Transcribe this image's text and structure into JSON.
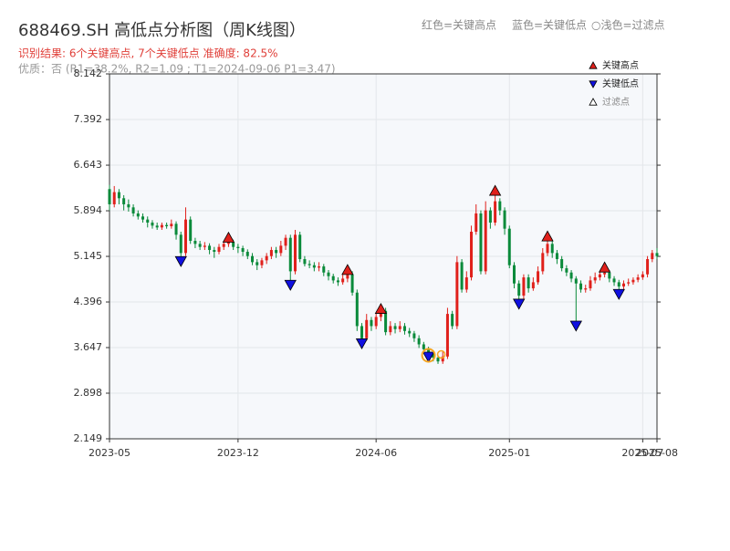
{
  "chart_data": {
    "type": "candlestick",
    "title": "688469.SH 高低点分析图（周K线图）",
    "subtitle": "识别结果: 6个关键高点, 7个关键低点  准确度: 82.5%",
    "note": "优质：否 (R1=38.2%, R2=1.09 ; T1=2024-09-06 P1=3.47)",
    "color_key": [
      "红色=关键高点",
      "蓝色=关键低点",
      "○浅色=过滤点"
    ],
    "up_color": "#e0201b",
    "down_color": "#0a8a3a",
    "ylim": [
      2.149,
      8.142
    ],
    "yticks": [
      2.149,
      2.898,
      3.647,
      4.396,
      5.145,
      5.894,
      6.643,
      7.392,
      8.142
    ],
    "grid": true,
    "legend": "upper right",
    "categories": [
      "2023-05",
      null,
      null,
      null,
      null,
      null,
      null,
      null,
      null,
      null,
      null,
      null,
      null,
      null,
      null,
      null,
      null,
      null,
      null,
      null,
      null,
      null,
      null,
      null,
      null,
      null,
      null,
      "2023-12",
      null,
      null,
      null,
      null,
      null,
      null,
      null,
      null,
      null,
      null,
      null,
      null,
      null,
      null,
      null,
      null,
      null,
      null,
      null,
      null,
      null,
      null,
      null,
      null,
      null,
      null,
      null,
      null,
      "2024-06",
      null,
      null,
      null,
      null,
      null,
      null,
      null,
      null,
      null,
      null,
      null,
      null,
      null,
      null,
      null,
      null,
      null,
      null,
      null,
      null,
      null,
      null,
      null,
      null,
      null,
      null,
      null,
      "2025-01",
      null,
      null,
      null,
      null,
      null,
      null,
      null,
      null,
      null,
      null,
      null,
      null,
      null,
      null,
      null,
      null,
      null,
      null,
      null,
      null,
      null,
      null,
      null,
      null,
      null,
      null,
      null,
      "2025-07",
      null,
      null,
      "2025-08"
    ],
    "ohlc": [
      [
        6.25,
        6.32,
        5.9,
        6.0
      ],
      [
        6.0,
        6.3,
        5.95,
        6.2
      ],
      [
        6.2,
        6.25,
        6.0,
        6.1
      ],
      [
        6.1,
        6.15,
        5.9,
        6.0
      ],
      [
        6.0,
        6.08,
        5.88,
        5.95
      ],
      [
        5.95,
        6.0,
        5.8,
        5.85
      ],
      [
        5.85,
        5.9,
        5.75,
        5.8
      ],
      [
        5.8,
        5.85,
        5.7,
        5.75
      ],
      [
        5.75,
        5.8,
        5.62,
        5.7
      ],
      [
        5.7,
        5.74,
        5.6,
        5.65
      ],
      [
        5.65,
        5.7,
        5.58,
        5.62
      ],
      [
        5.62,
        5.7,
        5.58,
        5.66
      ],
      [
        5.66,
        5.7,
        5.6,
        5.64
      ],
      [
        5.64,
        5.75,
        5.6,
        5.68
      ],
      [
        5.68,
        5.72,
        5.42,
        5.5
      ],
      [
        5.5,
        5.55,
        5.12,
        5.2
      ],
      [
        5.2,
        5.95,
        5.15,
        5.75
      ],
      [
        5.75,
        5.8,
        5.35,
        5.4
      ],
      [
        5.4,
        5.45,
        5.28,
        5.35
      ],
      [
        5.35,
        5.4,
        5.25,
        5.3
      ],
      [
        5.3,
        5.38,
        5.25,
        5.32
      ],
      [
        5.32,
        5.36,
        5.18,
        5.25
      ],
      [
        5.25,
        5.3,
        5.12,
        5.22
      ],
      [
        5.22,
        5.35,
        5.18,
        5.3
      ],
      [
        5.3,
        5.4,
        5.25,
        5.35
      ],
      [
        5.35,
        5.45,
        5.3,
        5.38
      ],
      [
        5.38,
        5.42,
        5.25,
        5.3
      ],
      [
        5.3,
        5.35,
        5.2,
        5.28
      ],
      [
        5.28,
        5.32,
        5.15,
        5.22
      ],
      [
        5.22,
        5.26,
        5.1,
        5.15
      ],
      [
        5.15,
        5.2,
        5.0,
        5.05
      ],
      [
        5.05,
        5.1,
        4.92,
        5.0
      ],
      [
        5.0,
        5.12,
        4.95,
        5.08
      ],
      [
        5.08,
        5.2,
        5.02,
        5.15
      ],
      [
        5.15,
        5.3,
        5.1,
        5.25
      ],
      [
        5.25,
        5.3,
        5.12,
        5.2
      ],
      [
        5.2,
        5.4,
        5.15,
        5.32
      ],
      [
        5.32,
        5.5,
        5.25,
        5.45
      ],
      [
        5.45,
        5.5,
        4.72,
        4.9
      ],
      [
        4.9,
        5.58,
        4.85,
        5.5
      ],
      [
        5.5,
        5.55,
        5.05,
        5.1
      ],
      [
        5.1,
        5.15,
        4.98,
        5.02
      ],
      [
        5.02,
        5.08,
        4.95,
        5.0
      ],
      [
        5.0,
        5.05,
        4.9,
        4.96
      ],
      [
        4.96,
        5.05,
        4.9,
        4.98
      ],
      [
        4.98,
        5.02,
        4.82,
        4.88
      ],
      [
        4.88,
        4.92,
        4.75,
        4.82
      ],
      [
        4.82,
        4.86,
        4.7,
        4.75
      ],
      [
        4.75,
        4.8,
        4.66,
        4.72
      ],
      [
        4.72,
        4.85,
        4.68,
        4.78
      ],
      [
        4.78,
        4.92,
        4.72,
        4.85
      ],
      [
        4.85,
        4.9,
        4.5,
        4.55
      ],
      [
        4.55,
        4.6,
        3.92,
        4.0
      ],
      [
        4.0,
        4.05,
        3.72,
        3.8
      ],
      [
        3.8,
        4.2,
        3.76,
        4.1
      ],
      [
        4.1,
        4.15,
        3.92,
        4.0
      ],
      [
        4.0,
        4.22,
        3.95,
        4.15
      ],
      [
        4.15,
        4.28,
        4.08,
        4.25
      ],
      [
        4.25,
        4.3,
        3.85,
        3.9
      ],
      [
        3.9,
        4.08,
        3.85,
        4.0
      ],
      [
        4.0,
        4.05,
        3.88,
        3.95
      ],
      [
        3.95,
        4.08,
        3.9,
        4.0
      ],
      [
        4.0,
        4.05,
        3.86,
        3.92
      ],
      [
        3.92,
        3.97,
        3.82,
        3.88
      ],
      [
        3.88,
        3.92,
        3.74,
        3.8
      ],
      [
        3.8,
        3.85,
        3.64,
        3.7
      ],
      [
        3.7,
        3.74,
        3.56,
        3.62
      ],
      [
        3.62,
        3.66,
        3.5,
        3.55
      ],
      [
        3.55,
        3.6,
        3.42,
        3.48
      ],
      [
        3.48,
        3.52,
        3.38,
        3.42
      ],
      [
        3.42,
        3.58,
        3.38,
        3.5
      ],
      [
        3.5,
        4.3,
        3.46,
        4.2
      ],
      [
        4.2,
        4.25,
        3.95,
        4.0
      ],
      [
        4.0,
        5.15,
        3.95,
        5.05
      ],
      [
        5.05,
        5.1,
        4.55,
        4.6
      ],
      [
        4.6,
        4.9,
        4.55,
        4.8
      ],
      [
        4.8,
        5.65,
        4.75,
        5.55
      ],
      [
        5.55,
        6.0,
        5.5,
        5.85
      ],
      [
        5.85,
        5.9,
        4.85,
        4.9
      ],
      [
        4.9,
        6.05,
        4.85,
        5.9
      ],
      [
        5.9,
        5.95,
        5.6,
        5.7
      ],
      [
        5.7,
        6.2,
        5.65,
        6.05
      ],
      [
        6.05,
        6.1,
        5.82,
        5.9
      ],
      [
        5.9,
        5.95,
        5.5,
        5.6
      ],
      [
        5.6,
        5.65,
        4.95,
        5.0
      ],
      [
        5.0,
        5.05,
        4.62,
        4.7
      ],
      [
        4.7,
        4.75,
        4.38,
        4.5
      ],
      [
        4.5,
        4.85,
        4.45,
        4.8
      ],
      [
        4.8,
        4.85,
        4.55,
        4.62
      ],
      [
        4.62,
        4.8,
        4.58,
        4.72
      ],
      [
        4.72,
        4.98,
        4.68,
        4.9
      ],
      [
        4.9,
        5.28,
        4.85,
        5.2
      ],
      [
        5.2,
        5.45,
        5.15,
        5.35
      ],
      [
        5.35,
        5.4,
        5.12,
        5.2
      ],
      [
        5.2,
        5.25,
        5.02,
        5.1
      ],
      [
        5.1,
        5.15,
        4.9,
        4.95
      ],
      [
        4.95,
        5.0,
        4.82,
        4.88
      ],
      [
        4.88,
        4.92,
        4.72,
        4.78
      ],
      [
        4.78,
        4.82,
        4.05,
        4.7
      ],
      [
        4.7,
        4.75,
        4.55,
        4.6
      ],
      [
        4.6,
        4.68,
        4.55,
        4.62
      ],
      [
        4.62,
        4.82,
        4.58,
        4.75
      ],
      [
        4.75,
        4.88,
        4.7,
        4.8
      ],
      [
        4.8,
        4.9,
        4.75,
        4.85
      ],
      [
        4.85,
        4.93,
        4.8,
        4.88
      ],
      [
        4.88,
        4.92,
        4.72,
        4.78
      ],
      [
        4.78,
        4.82,
        4.66,
        4.72
      ],
      [
        4.72,
        4.76,
        4.58,
        4.65
      ],
      [
        4.65,
        4.75,
        4.6,
        4.7
      ],
      [
        4.7,
        4.78,
        4.66,
        4.72
      ],
      [
        4.72,
        4.8,
        4.68,
        4.76
      ],
      [
        4.76,
        4.85,
        4.72,
        4.8
      ],
      [
        4.8,
        4.9,
        4.76,
        4.85
      ],
      [
        4.85,
        5.15,
        4.8,
        5.1
      ],
      [
        5.1,
        5.25,
        5.05,
        5.2
      ],
      [
        5.2,
        5.28,
        5.1,
        5.15
      ]
    ],
    "markers": [
      {
        "name": "关键高点",
        "color": "#e0201b",
        "shape": "up",
        "values": [
          null,
          null,
          null,
          null,
          null,
          null,
          null,
          null,
          null,
          null,
          null,
          null,
          null,
          null,
          null,
          null,
          null,
          null,
          null,
          null,
          null,
          null,
          null,
          null,
          null,
          5.45,
          null,
          null,
          null,
          null,
          null,
          null,
          null,
          null,
          null,
          null,
          null,
          null,
          null,
          null,
          null,
          null,
          null,
          null,
          null,
          null,
          null,
          null,
          null,
          null,
          4.92,
          null,
          null,
          null,
          null,
          null,
          null,
          4.28,
          null,
          null,
          null,
          null,
          null,
          null,
          null,
          null,
          null,
          null,
          null,
          null,
          null,
          null,
          null,
          null,
          null,
          null,
          null,
          null,
          null,
          null,
          null,
          6.22,
          null,
          null,
          null,
          null,
          null,
          null,
          null,
          null,
          null,
          null,
          5.47,
          null,
          null,
          null,
          null,
          null,
          null,
          null,
          null,
          null,
          null,
          null,
          4.96,
          null,
          null,
          null,
          null,
          null,
          null,
          null,
          null,
          null,
          null,
          null
        ]
      },
      {
        "name": "关键低点",
        "color": "#1010e0",
        "shape": "down",
        "values": [
          null,
          null,
          null,
          null,
          null,
          null,
          null,
          null,
          null,
          null,
          null,
          null,
          null,
          null,
          null,
          5.07,
          null,
          null,
          null,
          null,
          null,
          null,
          null,
          null,
          null,
          null,
          null,
          null,
          null,
          null,
          null,
          null,
          null,
          null,
          null,
          null,
          null,
          null,
          4.68,
          null,
          null,
          null,
          null,
          null,
          null,
          null,
          null,
          null,
          null,
          null,
          null,
          null,
          null,
          3.72,
          null,
          null,
          null,
          null,
          null,
          null,
          null,
          null,
          null,
          null,
          null,
          null,
          null,
          3.5,
          null,
          null,
          null,
          null,
          null,
          null,
          null,
          null,
          null,
          null,
          null,
          null,
          null,
          null,
          null,
          null,
          null,
          null,
          4.37,
          null,
          null,
          null,
          null,
          null,
          null,
          null,
          null,
          null,
          null,
          null,
          4.01,
          null,
          null,
          null,
          null,
          null,
          null,
          null,
          null,
          4.53,
          null,
          null,
          null,
          null,
          null,
          null,
          null,
          null
        ]
      },
      {
        "name": "过滤点",
        "color": "#ffffff",
        "ring_color": "#f5a623",
        "shape": "ring",
        "values": [
          null,
          null,
          null,
          null,
          null,
          null,
          null,
          null,
          null,
          null,
          null,
          null,
          null,
          null,
          null,
          null,
          null,
          null,
          null,
          null,
          null,
          null,
          null,
          null,
          null,
          null,
          null,
          null,
          null,
          null,
          null,
          null,
          null,
          null,
          null,
          null,
          null,
          null,
          null,
          null,
          null,
          null,
          null,
          null,
          null,
          null,
          null,
          null,
          null,
          null,
          null,
          null,
          null,
          null,
          null,
          null,
          null,
          null,
          null,
          null,
          null,
          null,
          null,
          null,
          null,
          null,
          null,
          3.52,
          null,
          null,
          null,
          null,
          null,
          null,
          null,
          null,
          null,
          null,
          null,
          null,
          null,
          null,
          null,
          null,
          null,
          null,
          null,
          null,
          null,
          null,
          null,
          null,
          null,
          null,
          null,
          null,
          null,
          null,
          null,
          null,
          null,
          null,
          null,
          null,
          null,
          null,
          null,
          null,
          null,
          null,
          null,
          null,
          null,
          null,
          null,
          null
        ]
      }
    ]
  }
}
